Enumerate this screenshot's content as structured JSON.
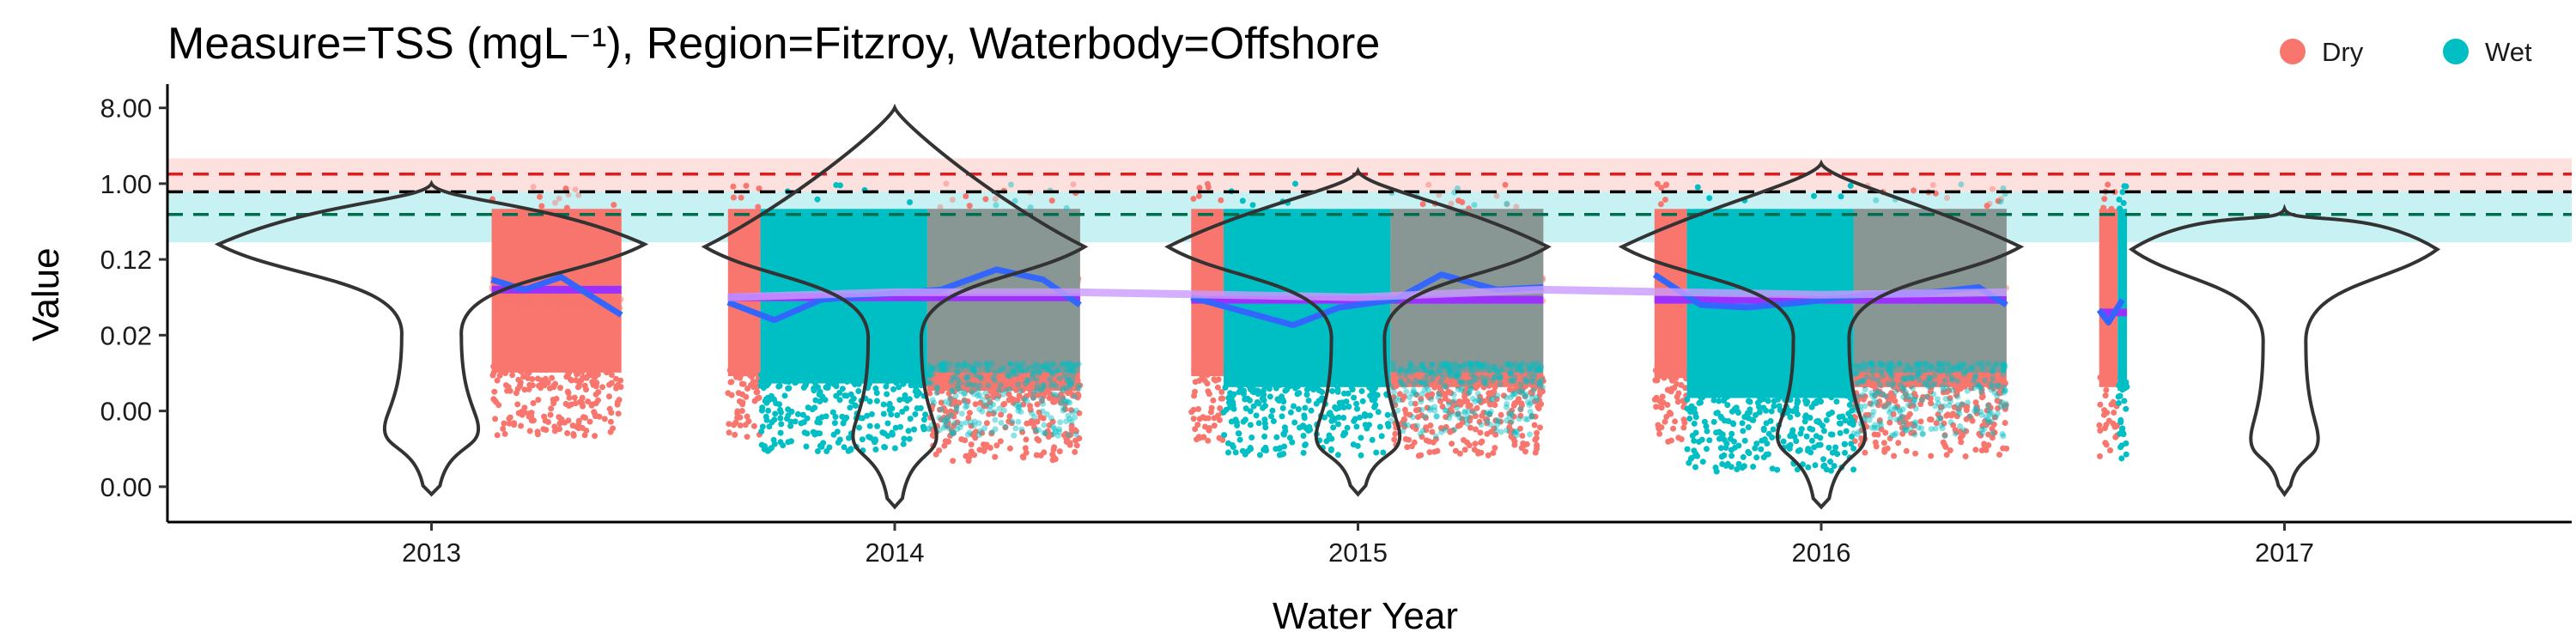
{
  "chart_data": {
    "type": "scatter",
    "title": "Measure=TSS (mgL⁻¹), Region=Fitzroy, Waterbody=Offshore",
    "xlabel": "Water Year",
    "ylabel": "Value",
    "x_ticks": [
      "2013",
      "2014",
      "2015",
      "2016",
      "2017"
    ],
    "y_ticks": [
      "8.00",
      "1.00",
      "0.12",
      "0.02",
      "0.00",
      "0.00",
      "0.00",
      "0.00"
    ],
    "y_scale": "log2",
    "xlim": [
      2012.43,
      2017.62
    ],
    "ylim_log2": [
      -13.4,
      3.6
    ],
    "legend": {
      "placement": "top-right",
      "items": [
        {
          "label": "Dry",
          "color": "#F8766D"
        },
        {
          "label": "Wet",
          "color": "#00BFC4"
        }
      ]
    },
    "reference_lines": [
      {
        "value": 1.3,
        "color": "#E41A1C",
        "style": "dashed"
      },
      {
        "value": 0.8,
        "color": "#000000",
        "style": "dashed"
      },
      {
        "value": 0.43,
        "color": "#006D4F",
        "style": "dashed"
      }
    ],
    "reference_bands": [
      {
        "from": 0.8,
        "to": 2.0,
        "color": "#F8766D"
      },
      {
        "from": 0.2,
        "to": 0.8,
        "color": "#00BFC4"
      }
    ],
    "series": [
      {
        "name": "Dry",
        "color": "#F8766D",
        "blocks": [
          {
            "x0": 2013.13,
            "x1": 2013.41,
            "ylog_top": -1.0,
            "ylog_bot": -10.0,
            "faded": false
          },
          {
            "x0": 2013.13,
            "x1": 2013.41,
            "ylog_top": -1.0,
            "ylog_bot": -5.0,
            "faded": true
          },
          {
            "x0": 2013.64,
            "x1": 2013.71,
            "ylog_top": -1.0,
            "ylog_bot": -10.2,
            "faded": false
          },
          {
            "x0": 2014.07,
            "x1": 2014.4,
            "ylog_top": -1.0,
            "ylog_bot": -11.0,
            "faded": false
          },
          {
            "x0": 2014.07,
            "x1": 2014.4,
            "ylog_top": -1.0,
            "ylog_bot": -5.0,
            "faded": true
          },
          {
            "x0": 2014.64,
            "x1": 2014.71,
            "ylog_top": -1.0,
            "ylog_bot": -10.2,
            "faded": false
          },
          {
            "x0": 2015.07,
            "x1": 2015.4,
            "ylog_top": -1.0,
            "ylog_bot": -10.8,
            "faded": false
          },
          {
            "x0": 2015.07,
            "x1": 2015.4,
            "ylog_top": -1.0,
            "ylog_bot": -5.0,
            "faded": true
          },
          {
            "x0": 2015.64,
            "x1": 2015.71,
            "ylog_top": -1.0,
            "ylog_bot": -10.3,
            "faded": false
          },
          {
            "x0": 2016.07,
            "x1": 2016.4,
            "ylog_top": -1.0,
            "ylog_bot": -10.8,
            "faded": false
          },
          {
            "x0": 2016.07,
            "x1": 2016.4,
            "ylog_top": -1.0,
            "ylog_bot": -5.0,
            "faded": true
          },
          {
            "x0": 2016.6,
            "x1": 2016.64,
            "ylog_top": -1.0,
            "ylog_bot": -10.8,
            "faded": false
          }
        ]
      },
      {
        "name": "Wet",
        "color": "#00BFC4",
        "blocks": [
          {
            "x0": 2013.71,
            "x1": 2014.07,
            "ylog_top": -1.0,
            "ylog_bot": -10.6,
            "faded": false
          },
          {
            "x0": 2014.07,
            "x1": 2014.4,
            "ylog_top": -1.0,
            "ylog_bot": -10.0,
            "faded": true
          },
          {
            "x0": 2014.71,
            "x1": 2015.07,
            "ylog_top": -1.0,
            "ylog_bot": -10.8,
            "faded": false
          },
          {
            "x0": 2015.07,
            "x1": 2015.4,
            "ylog_top": -1.0,
            "ylog_bot": -10.0,
            "faded": true
          },
          {
            "x0": 2015.71,
            "x1": 2016.07,
            "ylog_top": -1.0,
            "ylog_bot": -11.4,
            "faded": false
          },
          {
            "x0": 2016.07,
            "x1": 2016.4,
            "ylog_top": -1.0,
            "ylog_bot": -10.0,
            "faded": true
          },
          {
            "x0": 2016.64,
            "x1": 2016.66,
            "ylog_top": -1.0,
            "ylog_bot": -11.0,
            "faded": false
          }
        ]
      }
    ],
    "violins": [
      {
        "center": 2013.0,
        "ylog_top": 0,
        "ylog_bot": -12.3,
        "halfwidth": 0.46,
        "wide_at": -2.4,
        "lower_bulge": -9.7
      },
      {
        "center": 2014.0,
        "ylog_top": 3,
        "ylog_bot": -12.8,
        "halfwidth": 0.41,
        "wide_at": -2.5,
        "lower_bulge": -10.0
      },
      {
        "center": 2015.0,
        "ylog_top": 0.5,
        "ylog_bot": -12.3,
        "halfwidth": 0.41,
        "wide_at": -2.5,
        "lower_bulge": -10.0
      },
      {
        "center": 2016.0,
        "ylog_top": 0.8,
        "ylog_bot": -12.8,
        "halfwidth": 0.43,
        "wide_at": -2.5,
        "lower_bulge": -10.0
      },
      {
        "center": 2017.0,
        "ylog_top": -1.0,
        "ylog_bot": -12.3,
        "halfwidth": 0.33,
        "wide_at": -2.6,
        "lower_bulge": -10.1
      }
    ],
    "trend_lines": [
      {
        "name": "annual mean",
        "color": "#9B30FF",
        "segments": [
          {
            "x0": 2013.13,
            "x1": 2013.41,
            "ylog": -4.2
          },
          {
            "x0": 2013.64,
            "x1": 2014.4,
            "ylog": -4.5
          },
          {
            "x0": 2014.64,
            "x1": 2015.4,
            "ylog": -4.6
          },
          {
            "x0": 2015.64,
            "x1": 2016.4,
            "ylog": -4.6
          },
          {
            "x0": 2016.6,
            "x1": 2016.66,
            "ylog": -5.1
          }
        ]
      },
      {
        "name": "smoother",
        "color": "#3366FF",
        "points": [
          [
            2013.13,
            -3.8
          ],
          [
            2013.2,
            -4.2
          ],
          [
            2013.28,
            -3.7
          ],
          [
            2013.34,
            -4.4
          ],
          [
            2013.41,
            -5.2
          ]
        ],
        "points2": [
          [
            2013.64,
            -4.7
          ],
          [
            2013.74,
            -5.4
          ],
          [
            2013.84,
            -4.6
          ],
          [
            2013.96,
            -4.4
          ],
          [
            2014.1,
            -4.2
          ],
          [
            2014.22,
            -3.4
          ],
          [
            2014.32,
            -3.8
          ],
          [
            2014.4,
            -4.8
          ]
        ],
        "points3": [
          [
            2014.64,
            -4.5
          ],
          [
            2014.76,
            -5.1
          ],
          [
            2014.86,
            -5.6
          ],
          [
            2014.96,
            -4.9
          ],
          [
            2015.08,
            -4.6
          ],
          [
            2015.18,
            -3.6
          ],
          [
            2015.3,
            -4.2
          ],
          [
            2015.4,
            -4.1
          ]
        ],
        "points4": [
          [
            2015.64,
            -3.6
          ],
          [
            2015.74,
            -4.8
          ],
          [
            2015.84,
            -4.9
          ],
          [
            2015.96,
            -4.7
          ],
          [
            2016.1,
            -4.4
          ],
          [
            2016.24,
            -4.3
          ],
          [
            2016.34,
            -4.1
          ],
          [
            2016.4,
            -4.8
          ]
        ],
        "points5": [
          [
            2016.6,
            -5.0
          ],
          [
            2016.62,
            -5.5
          ],
          [
            2016.65,
            -4.6
          ]
        ]
      },
      {
        "name": "long-term smoother",
        "color": "#C99BFF",
        "points": [
          [
            2013.64,
            -4.5
          ],
          [
            2014.0,
            -4.3
          ],
          [
            2014.4,
            -4.3
          ],
          [
            2015.0,
            -4.5
          ],
          [
            2015.4,
            -4.2
          ],
          [
            2016.0,
            -4.4
          ],
          [
            2016.4,
            -4.3
          ]
        ]
      }
    ]
  }
}
